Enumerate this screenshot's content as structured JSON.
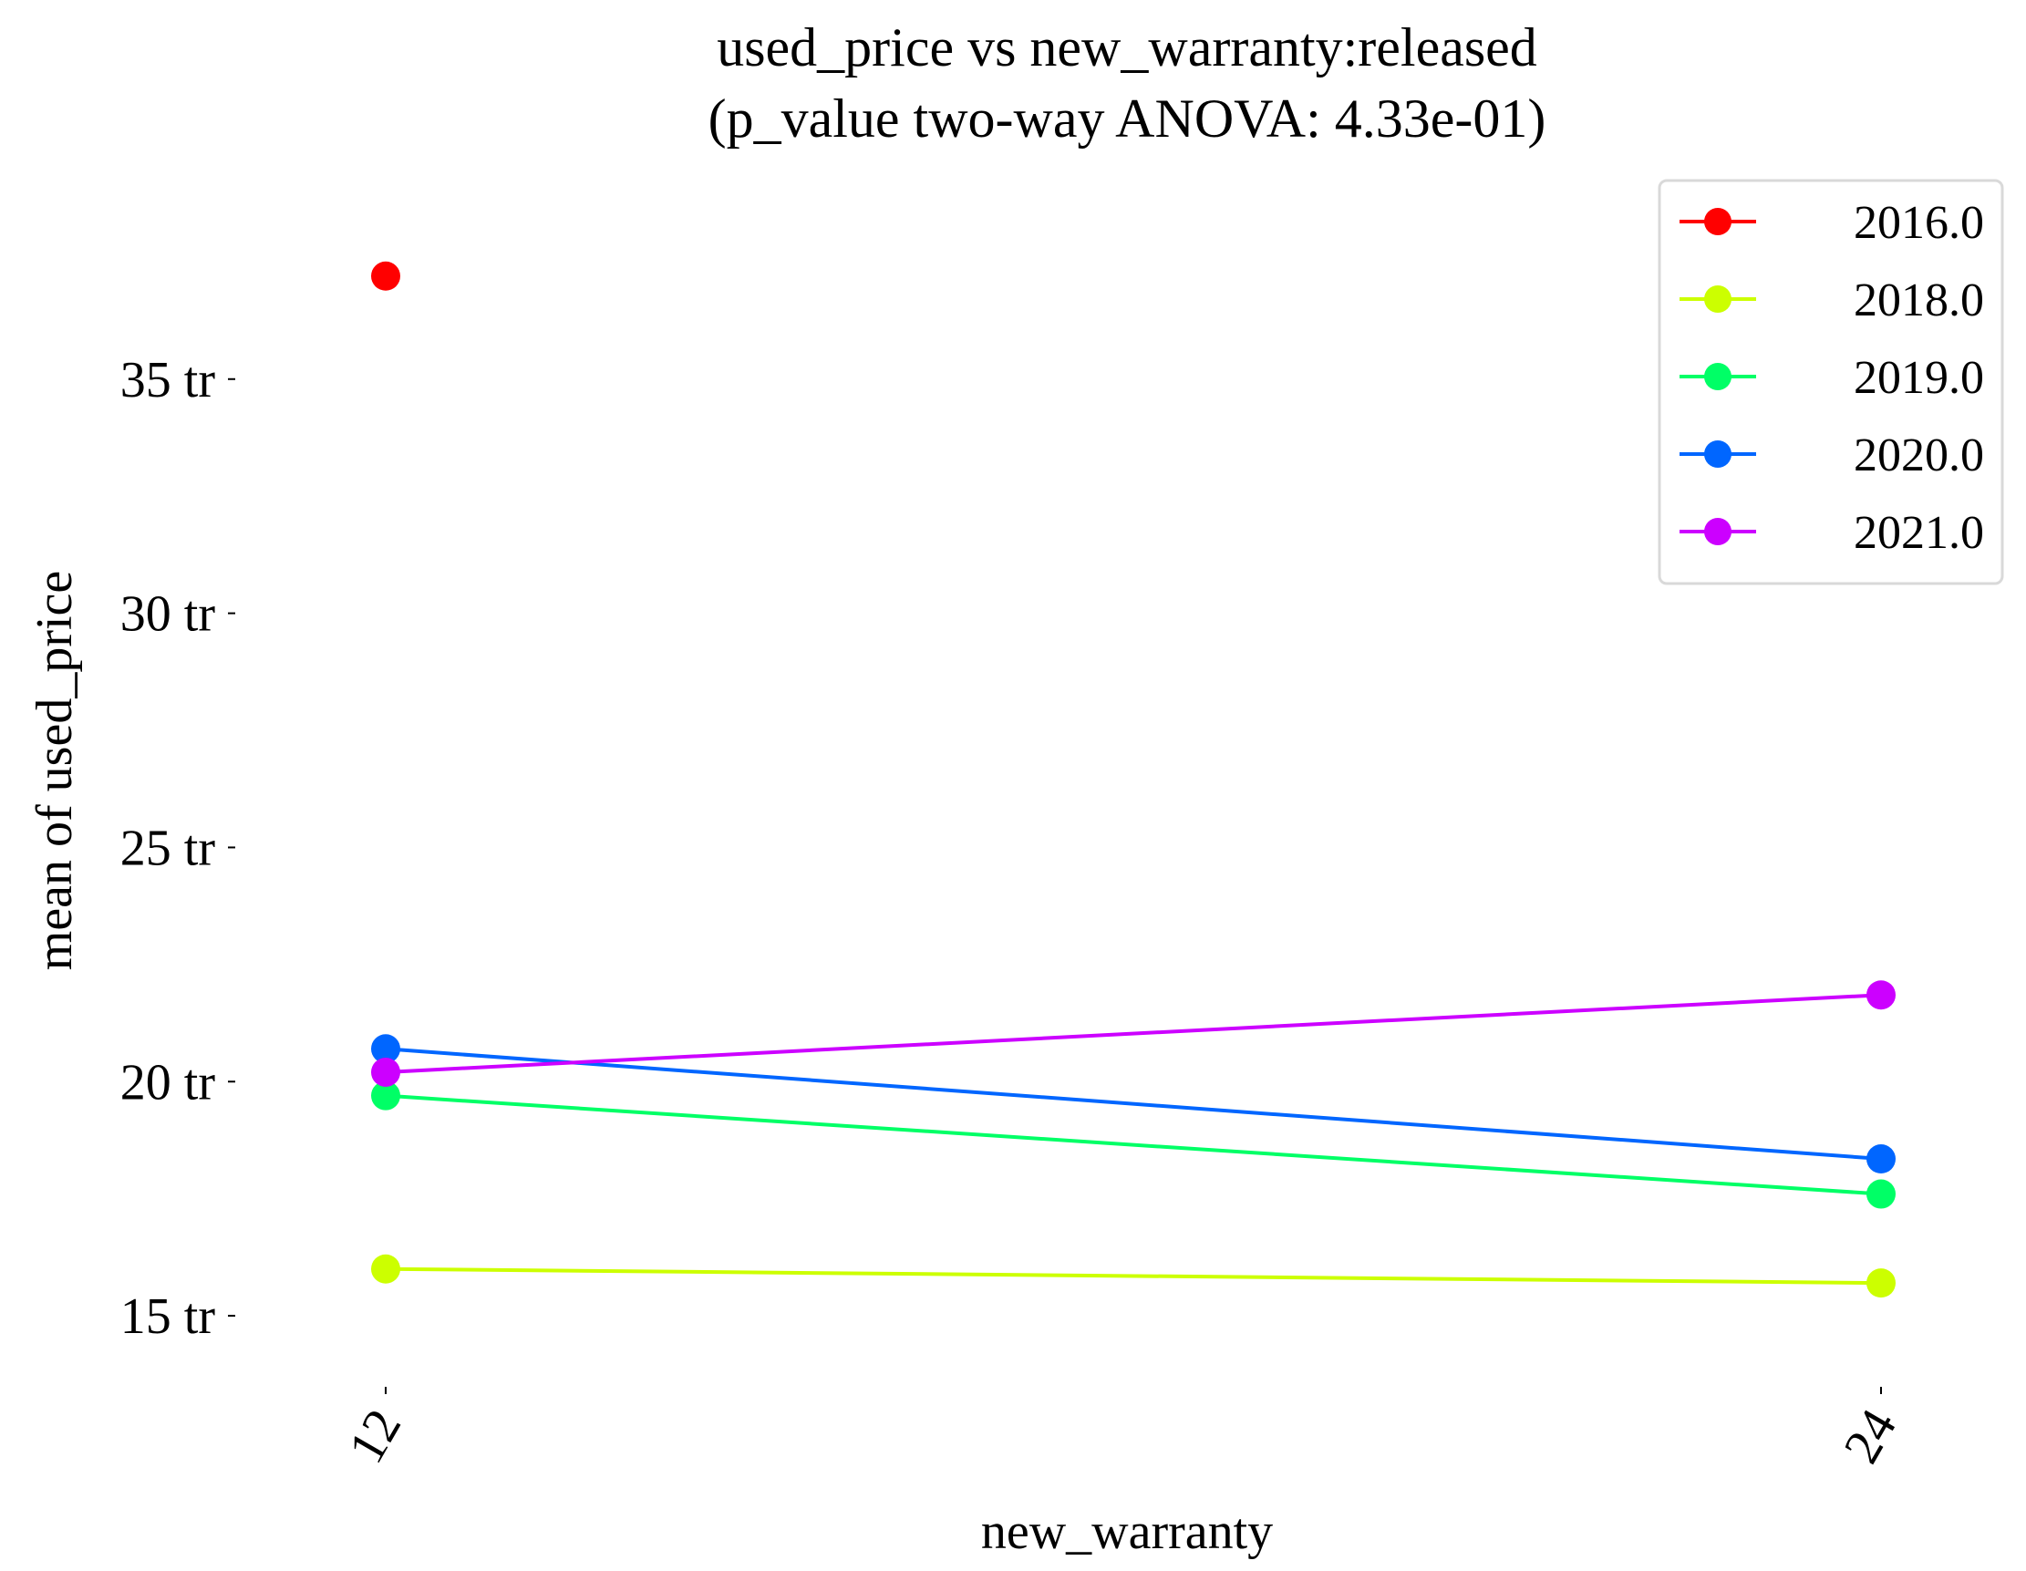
{
  "chart_data": {
    "type": "line",
    "title": "used_price vs new_warranty:released",
    "subtitle": "(p_value two-way ANOVA: 4.33e-01)",
    "xlabel": "new_warranty",
    "ylabel": "mean of used_price",
    "categories": [
      "12",
      "24"
    ],
    "yticks": [
      {
        "value": 15,
        "label": "15 tr"
      },
      {
        "value": 20,
        "label": "20 tr"
      },
      {
        "value": 25,
        "label": "25 tr"
      },
      {
        "value": 30,
        "label": "30 tr"
      },
      {
        "value": 35,
        "label": "35 tr"
      }
    ],
    "ylim": [
      13.6,
      38.5
    ],
    "grid": false,
    "legend_position": "top-right",
    "series": [
      {
        "name": "2016.0",
        "color": "#ff0000",
        "values": [
          37.2,
          null
        ]
      },
      {
        "name": "2018.0",
        "color": "#ccff00",
        "values": [
          16.0,
          15.7
        ]
      },
      {
        "name": "2019.0",
        "color": "#00ff66",
        "values": [
          19.7,
          17.6
        ]
      },
      {
        "name": "2020.0",
        "color": "#0066ff",
        "values": [
          20.7,
          18.35
        ]
      },
      {
        "name": "2021.0",
        "color": "#cc00ff",
        "values": [
          20.2,
          21.85
        ]
      }
    ]
  }
}
